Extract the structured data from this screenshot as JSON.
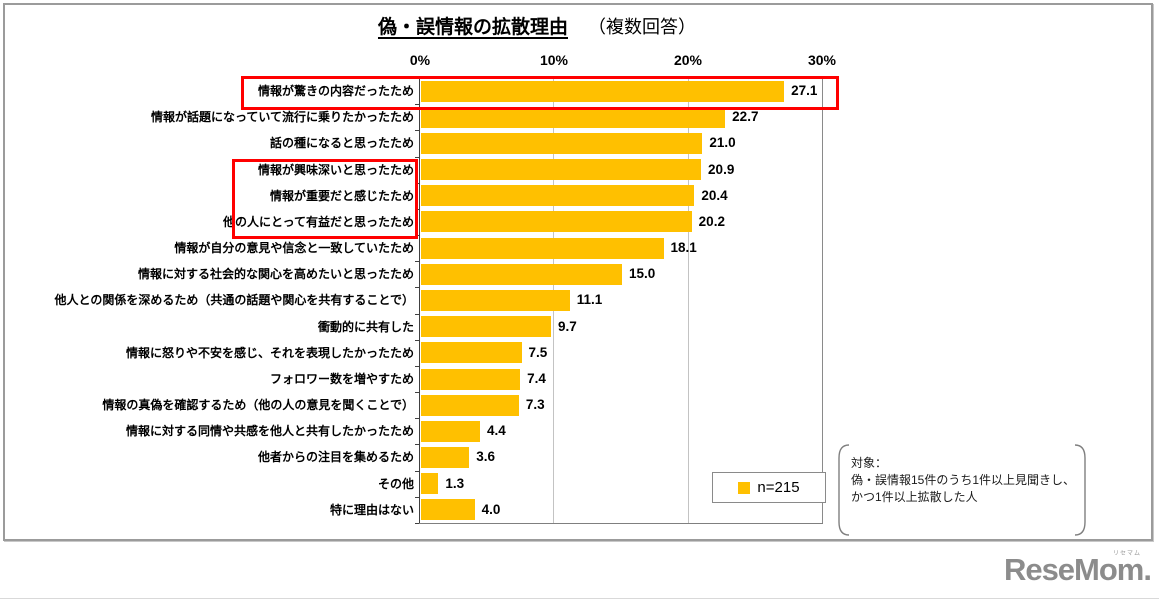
{
  "title": {
    "main": "偽・誤情報の拡散理由",
    "sub": "（複数回答）"
  },
  "chart_data": {
    "type": "bar",
    "orientation": "horizontal",
    "title": "偽・誤情報の拡散理由（複数回答）",
    "categories": [
      "情報が驚きの内容だったため",
      "情報が話題になっていて流行に乗りたかったため",
      "話の種になると思ったため",
      "情報が興味深いと思ったため",
      "情報が重要だと感じたため",
      "他の人にとって有益だと思ったため",
      "情報が自分の意見や信念と一致していたため",
      "情報に対する社会的な関心を高めたいと思ったため",
      "他人との関係を深めるため（共通の話題や関心を共有することで）",
      "衝動的に共有した",
      "情報に怒りや不安を感じ、それを表現したかったため",
      "フォロワー数を増やすため",
      "情報の真偽を確認するため（他の人の意見を聞くことで）",
      "情報に対する同情や共感を他人と共有したかったため",
      "他者からの注目を集めるため",
      "その他",
      "特に理由はない"
    ],
    "values": [
      27.1,
      22.7,
      21.0,
      20.9,
      20.4,
      20.2,
      18.1,
      15.0,
      11.1,
      9.7,
      7.5,
      7.4,
      7.3,
      4.4,
      3.6,
      1.3,
      4.0
    ],
    "value_labels": [
      "27.1",
      "22.7",
      "21.0",
      "20.9",
      "20.4",
      "20.2",
      "18.1",
      "15.0",
      "11.1",
      "9.7",
      "7.5",
      "7.4",
      "7.3",
      "4.4",
      "3.6",
      "1.3",
      "4.0"
    ],
    "xlim": [
      0,
      30
    ],
    "x_ticks": [
      "0%",
      "10%",
      "20%",
      "30%"
    ],
    "grid": "vertical-at-10-and-20",
    "bar_color": "#FFC000",
    "highlight_color": "#FF0000",
    "highlighted_full_rows": [
      0
    ],
    "highlighted_label_rows": [
      3,
      4,
      5
    ],
    "legend_position": "bottom-right-inside"
  },
  "legend": {
    "label": "n=215",
    "swatch_color": "#FFC000"
  },
  "note": {
    "lines": [
      "対象：",
      "偽・誤情報15件のうち1件以上見聞きし、",
      "かつ1件以上拡散した人"
    ]
  },
  "logo": {
    "text": "ReseMom",
    "suffix": ".",
    "ruby": "リセマム"
  }
}
